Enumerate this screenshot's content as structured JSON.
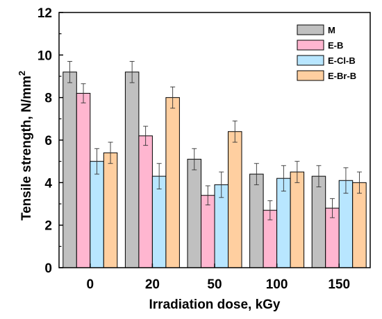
{
  "chart_data": {
    "type": "bar",
    "categories": [
      "0",
      "20",
      "50",
      "100",
      "150"
    ],
    "series": [
      {
        "name": "M",
        "color": "#c0c0c0",
        "values": [
          9.2,
          9.2,
          5.1,
          4.4,
          4.3
        ],
        "errors": [
          0.5,
          0.5,
          0.5,
          0.5,
          0.5
        ]
      },
      {
        "name": "E-B",
        "color": "#ffb6d0",
        "values": [
          8.2,
          6.2,
          3.4,
          2.7,
          2.8
        ],
        "errors": [
          0.45,
          0.45,
          0.45,
          0.45,
          0.45
        ]
      },
      {
        "name": "E-Cl-B",
        "color": "#b8e6ff",
        "values": [
          5.0,
          4.3,
          3.9,
          4.2,
          4.1
        ],
        "errors": [
          0.6,
          0.6,
          0.6,
          0.6,
          0.6
        ]
      },
      {
        "name": "E-Br-B",
        "color": "#ffcfa0",
        "values": [
          5.4,
          8.0,
          6.4,
          4.5,
          4.0
        ],
        "errors": [
          0.5,
          0.5,
          0.5,
          0.5,
          0.5
        ]
      }
    ],
    "xlabel": "Irradiation dose, kGy",
    "ylabel": "Tensile strength, N/mm",
    "ylabel_superscript": "2",
    "ylim": [
      0,
      12
    ],
    "yticks": [
      0,
      2,
      4,
      6,
      8,
      10,
      12
    ],
    "grid": false,
    "legend_position": "top-right"
  }
}
